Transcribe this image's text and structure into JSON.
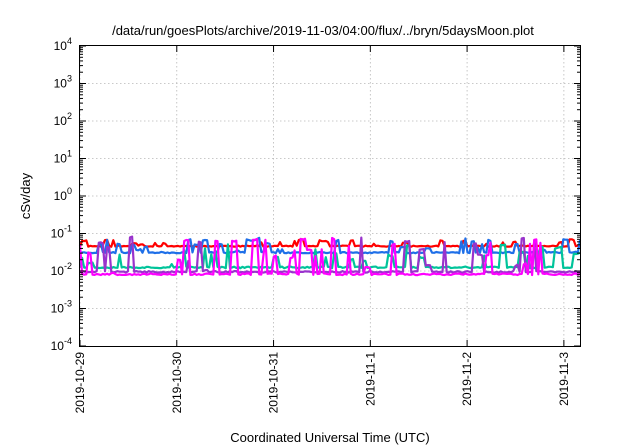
{
  "chart_data": {
    "type": "line",
    "title": "/data/run/goesPlots/archive/2019-11-03/04:00/flux/../bryn/5daysMoon.plot",
    "xlabel": "Coordinated Universal Time (UTC)",
    "ylabel": "cSv/day",
    "y_scale": "log",
    "ylim_exponents": [
      -4,
      4
    ],
    "y_ticks": [
      {
        "base": "10",
        "exp": "-4",
        "value": 0.0001
      },
      {
        "base": "10",
        "exp": "-3",
        "value": 0.001
      },
      {
        "base": "10",
        "exp": "-2",
        "value": 0.01
      },
      {
        "base": "10",
        "exp": "-1",
        "value": 0.1
      },
      {
        "base": "10",
        "exp": "0",
        "value": 1
      },
      {
        "base": "10",
        "exp": "1",
        "value": 10
      },
      {
        "base": "10",
        "exp": "2",
        "value": 100
      },
      {
        "base": "10",
        "exp": "3",
        "value": 1000
      },
      {
        "base": "10",
        "exp": "4",
        "value": 10000
      }
    ],
    "xlim": [
      "2019-10-29T00:00",
      "2019-11-03T04:00"
    ],
    "x_ticks": [
      "2019-10-29",
      "2019-10-30",
      "2019-10-31",
      "2019-11-1",
      "2019-11-2",
      "2019-11-3"
    ],
    "grid": true,
    "legend": "none",
    "series": [
      {
        "color": "#ff0000",
        "base": 0.046,
        "spike": 0.068,
        "spread": 0.07,
        "seed": 11
      },
      {
        "color": "#1e6fe8",
        "base": 0.031,
        "spike": 0.075,
        "spread": 0.08,
        "seed": 23
      },
      {
        "color": "#00c49a",
        "base": 0.0125,
        "spike": 0.05,
        "spread": 0.1,
        "seed": 37
      },
      {
        "color": "#9933cc",
        "base": 0.0095,
        "spike": 0.085,
        "spread": 0.1,
        "seed": 41
      },
      {
        "color": "#ff00ff",
        "base": 0.0082,
        "spike": 0.075,
        "spread": 0.1,
        "seed": 53
      }
    ]
  }
}
